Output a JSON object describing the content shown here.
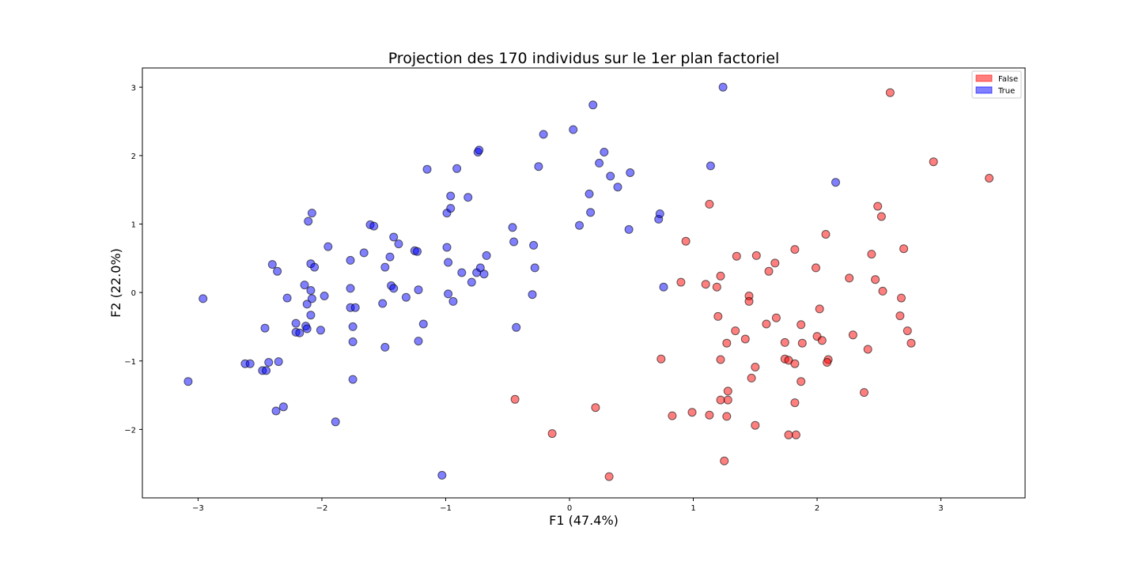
{
  "chart_data": {
    "type": "scatter",
    "title": "Projection des 170 individus sur le 1er plan factoriel",
    "xlabel": "F1 (47.4%)",
    "ylabel": "F2 (22.0%)",
    "xlim": [
      -3.45,
      3.68
    ],
    "ylim": [
      -3.0,
      3.28
    ],
    "xticks": [
      -3,
      -2,
      -1,
      0,
      1,
      2,
      3
    ],
    "xtick_labels": [
      "−3",
      "−2",
      "−1",
      "0",
      "1",
      "2",
      "3"
    ],
    "yticks": [
      -2,
      -1,
      0,
      1,
      2,
      3
    ],
    "ytick_labels": [
      "−2",
      "−1",
      "0",
      "1",
      "2",
      "3"
    ],
    "grid": false,
    "legend": {
      "position": "top-right",
      "entries": [
        "False",
        "True"
      ]
    },
    "colors": {
      "False": "#ff0000",
      "True": "#0000ff",
      "alpha": 0.5,
      "edge": "#000000"
    },
    "series": [
      {
        "name": "False",
        "points": [
          [
            2.59,
            2.92
          ],
          [
            2.94,
            1.91
          ],
          [
            3.39,
            1.67
          ],
          [
            2.49,
            1.26
          ],
          [
            2.52,
            1.11
          ],
          [
            2.07,
            0.85
          ],
          [
            2.44,
            0.56
          ],
          [
            2.7,
            0.64
          ],
          [
            1.82,
            0.63
          ],
          [
            1.13,
            1.29
          ],
          [
            0.94,
            0.75
          ],
          [
            1.35,
            0.53
          ],
          [
            1.51,
            0.54
          ],
          [
            1.66,
            0.43
          ],
          [
            1.61,
            0.31
          ],
          [
            1.22,
            0.24
          ],
          [
            0.9,
            0.15
          ],
          [
            1.1,
            0.12
          ],
          [
            1.19,
            0.08
          ],
          [
            1.99,
            0.36
          ],
          [
            2.26,
            0.21
          ],
          [
            2.47,
            0.19
          ],
          [
            2.53,
            0.02
          ],
          [
            2.68,
            -0.08
          ],
          [
            1.45,
            -0.05
          ],
          [
            1.45,
            -0.13
          ],
          [
            2.02,
            -0.24
          ],
          [
            1.2,
            -0.35
          ],
          [
            1.67,
            -0.37
          ],
          [
            1.59,
            -0.46
          ],
          [
            1.87,
            -0.47
          ],
          [
            1.34,
            -0.56
          ],
          [
            2.67,
            -0.34
          ],
          [
            2.73,
            -0.56
          ],
          [
            2.76,
            -0.74
          ],
          [
            2.29,
            -0.62
          ],
          [
            2.0,
            -0.64
          ],
          [
            2.04,
            -0.7
          ],
          [
            1.42,
            -0.68
          ],
          [
            1.27,
            -0.74
          ],
          [
            1.74,
            -0.73
          ],
          [
            1.88,
            -0.74
          ],
          [
            2.41,
            -0.83
          ],
          [
            0.74,
            -0.97
          ],
          [
            1.22,
            -0.98
          ],
          [
            1.74,
            -0.97
          ],
          [
            1.77,
            -0.99
          ],
          [
            1.82,
            -1.04
          ],
          [
            2.09,
            -0.98
          ],
          [
            2.08,
            -1.02
          ],
          [
            1.5,
            -1.09
          ],
          [
            1.47,
            -1.25
          ],
          [
            1.87,
            -1.3
          ],
          [
            1.28,
            -1.44
          ],
          [
            1.22,
            -1.57
          ],
          [
            1.28,
            -1.57
          ],
          [
            1.82,
            -1.61
          ],
          [
            0.99,
            -1.75
          ],
          [
            0.83,
            -1.8
          ],
          [
            1.13,
            -1.79
          ],
          [
            1.27,
            -1.81
          ],
          [
            1.5,
            -1.94
          ],
          [
            1.77,
            -2.08
          ],
          [
            1.83,
            -2.08
          ],
          [
            2.38,
            -1.46
          ],
          [
            -0.44,
            -1.56
          ],
          [
            0.21,
            -1.68
          ],
          [
            -0.14,
            -2.06
          ],
          [
            1.25,
            -2.46
          ],
          [
            0.32,
            -2.69
          ]
        ]
      },
      {
        "name": "True",
        "points": [
          [
            -3.08,
            -1.3
          ],
          [
            -2.96,
            -0.09
          ],
          [
            -2.62,
            -1.04
          ],
          [
            -2.58,
            -1.04
          ],
          [
            -2.48,
            -1.14
          ],
          [
            -2.45,
            -1.14
          ],
          [
            -2.43,
            -1.02
          ],
          [
            -2.35,
            -1.01
          ],
          [
            -2.37,
            -1.73
          ],
          [
            -2.31,
            -1.67
          ],
          [
            -2.46,
            -0.52
          ],
          [
            -2.4,
            0.41
          ],
          [
            -2.36,
            0.31
          ],
          [
            -2.28,
            -0.08
          ],
          [
            -2.21,
            -0.45
          ],
          [
            -2.21,
            -0.58
          ],
          [
            -2.18,
            -0.59
          ],
          [
            -2.13,
            -0.49
          ],
          [
            -2.12,
            -0.53
          ],
          [
            -2.14,
            0.11
          ],
          [
            -2.12,
            -0.17
          ],
          [
            -2.09,
            -0.33
          ],
          [
            -2.08,
            -0.09
          ],
          [
            -2.09,
            0.03
          ],
          [
            -2.09,
            0.42
          ],
          [
            -2.06,
            0.37
          ],
          [
            -2.11,
            1.04
          ],
          [
            -2.08,
            1.16
          ],
          [
            -2.01,
            -0.55
          ],
          [
            -1.98,
            -0.05
          ],
          [
            -1.95,
            0.67
          ],
          [
            -1.89,
            -1.89
          ],
          [
            -1.77,
            0.47
          ],
          [
            -1.77,
            0.06
          ],
          [
            -1.77,
            -0.22
          ],
          [
            -1.75,
            -0.5
          ],
          [
            -1.75,
            -0.72
          ],
          [
            -1.75,
            -1.27
          ],
          [
            -1.73,
            -0.22
          ],
          [
            -1.66,
            0.58
          ],
          [
            -1.61,
            0.99
          ],
          [
            -1.58,
            0.97
          ],
          [
            -1.51,
            -0.16
          ],
          [
            -1.49,
            0.37
          ],
          [
            -1.49,
            -0.8
          ],
          [
            -1.45,
            0.52
          ],
          [
            -1.44,
            0.1
          ],
          [
            -1.42,
            0.06
          ],
          [
            -1.42,
            0.81
          ],
          [
            -1.38,
            0.71
          ],
          [
            -1.32,
            -0.07
          ],
          [
            -1.25,
            0.61
          ],
          [
            -1.23,
            0.6
          ],
          [
            -1.22,
            0.04
          ],
          [
            -1.22,
            -0.71
          ],
          [
            -1.18,
            -0.46
          ],
          [
            -1.15,
            1.8
          ],
          [
            -1.03,
            -2.67
          ],
          [
            -0.99,
            1.16
          ],
          [
            -0.99,
            0.66
          ],
          [
            -0.98,
            0.44
          ],
          [
            -0.98,
            -0.02
          ],
          [
            -0.96,
            1.23
          ],
          [
            -0.96,
            1.41
          ],
          [
            -0.94,
            -0.13
          ],
          [
            -0.91,
            1.81
          ],
          [
            -0.87,
            0.29
          ],
          [
            -0.82,
            1.39
          ],
          [
            -0.79,
            0.15
          ],
          [
            -0.75,
            0.29
          ],
          [
            -0.74,
            2.05
          ],
          [
            -0.73,
            2.08
          ],
          [
            -0.72,
            0.36
          ],
          [
            -0.69,
            0.27
          ],
          [
            -0.67,
            0.54
          ],
          [
            -0.46,
            0.95
          ],
          [
            -0.45,
            0.74
          ],
          [
            -0.43,
            -0.51
          ],
          [
            -0.3,
            -0.03
          ],
          [
            -0.29,
            0.69
          ],
          [
            -0.28,
            0.36
          ],
          [
            -0.25,
            1.84
          ],
          [
            -0.21,
            2.31
          ],
          [
            0.03,
            2.38
          ],
          [
            0.08,
            0.98
          ],
          [
            0.16,
            1.44
          ],
          [
            0.17,
            1.17
          ],
          [
            0.19,
            2.74
          ],
          [
            0.24,
            1.89
          ],
          [
            0.28,
            2.05
          ],
          [
            0.33,
            1.7
          ],
          [
            0.39,
            1.54
          ],
          [
            0.48,
            0.92
          ],
          [
            0.49,
            1.75
          ],
          [
            0.72,
            1.07
          ],
          [
            0.73,
            1.15
          ],
          [
            0.76,
            0.08
          ],
          [
            1.14,
            1.85
          ],
          [
            1.24,
            3.0
          ],
          [
            2.15,
            1.61
          ]
        ]
      }
    ]
  }
}
